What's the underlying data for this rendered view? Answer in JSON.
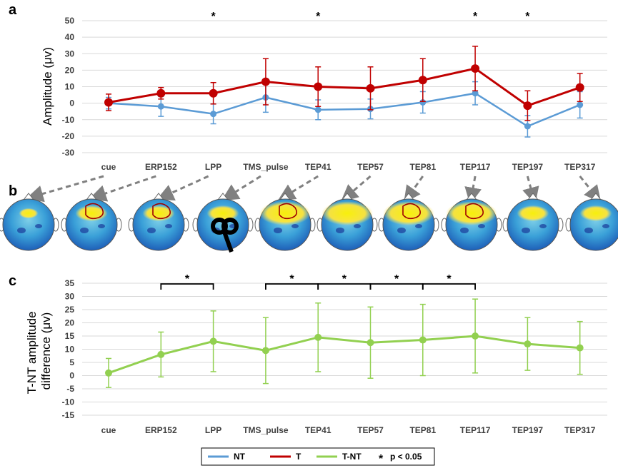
{
  "panels": {
    "a": "a",
    "b": "b",
    "c": "c"
  },
  "colors": {
    "NT": "#5b9bd5",
    "T": "#c00000",
    "TNT": "#92d050",
    "grid": "#d9d9d9",
    "arrow": "#808080"
  },
  "chart_data": [
    {
      "id": "a",
      "type": "line",
      "ylabel": "Amplitude (μv)",
      "categories": [
        "cue",
        "ERP152",
        "LPP",
        "TMS_pulse",
        "TEP41",
        "TEP57",
        "TEP81",
        "TEP117",
        "TEP197",
        "TEP317"
      ],
      "yticks": [
        50,
        40,
        30,
        20,
        10,
        0,
        -10,
        -20,
        -30
      ],
      "ylim": [
        -30,
        50
      ],
      "grid": true,
      "series": [
        {
          "name": "NT",
          "values": [
            0,
            -2,
            -6.5,
            3.5,
            -4,
            -3.5,
            0.5,
            6,
            -14,
            -1
          ],
          "err": [
            3.5,
            6,
            6,
            9,
            6,
            6,
            6.5,
            7,
            6.5,
            8
          ]
        },
        {
          "name": "T",
          "values": [
            0.5,
            6,
            6,
            13,
            10,
            9,
            14,
            21,
            -1.5,
            9.5
          ],
          "err": [
            5,
            3.5,
            6.5,
            14,
            12,
            13,
            13,
            13.5,
            9,
            8.5
          ]
        }
      ],
      "significance": [
        "LPP",
        "TEP41",
        "TEP117",
        "TEP197"
      ],
      "star_label": "*"
    },
    {
      "id": "c",
      "type": "line",
      "ylabel": "T-NT amplitude difference (μv)",
      "ylabel_lines": [
        "T-NT amplitude",
        "difference (μv)"
      ],
      "categories": [
        "cue",
        "ERP152",
        "LPP",
        "TMS_pulse",
        "TEP41",
        "TEP57",
        "TEP81",
        "TEP117",
        "TEP197",
        "TEP317"
      ],
      "yticks": [
        35,
        30,
        25,
        20,
        15,
        10,
        5,
        0,
        -5,
        -10,
        -15
      ],
      "ylim": [
        -15,
        35
      ],
      "grid": true,
      "series": [
        {
          "name": "T-NT",
          "values": [
            1,
            8,
            13,
            9.5,
            14.5,
            12.5,
            13.5,
            15,
            12,
            10.5
          ],
          "err": [
            5.5,
            8.5,
            11.5,
            12.5,
            13,
            13.5,
            13.5,
            14,
            10,
            10
          ]
        }
      ],
      "brackets": [
        [
          "ERP152",
          "LPP"
        ],
        [
          "TMS_pulse",
          "TEP41"
        ],
        [
          "TEP41",
          "TEP57"
        ],
        [
          "TEP57",
          "TEP81"
        ],
        [
          "TEP81",
          "TEP117"
        ]
      ],
      "star_label": "*"
    }
  ],
  "topomaps": {
    "count": 10,
    "outlined": [
      false,
      true,
      true,
      false,
      true,
      false,
      true,
      true,
      false,
      false
    ],
    "coil_index": 3
  },
  "legend": {
    "items": [
      {
        "label": "NT",
        "series": "NT"
      },
      {
        "label": "T",
        "series": "T"
      },
      {
        "label": "T-NT",
        "series": "TNT"
      }
    ],
    "sig_symbol": "*",
    "sig_text": "p < 0.05"
  }
}
